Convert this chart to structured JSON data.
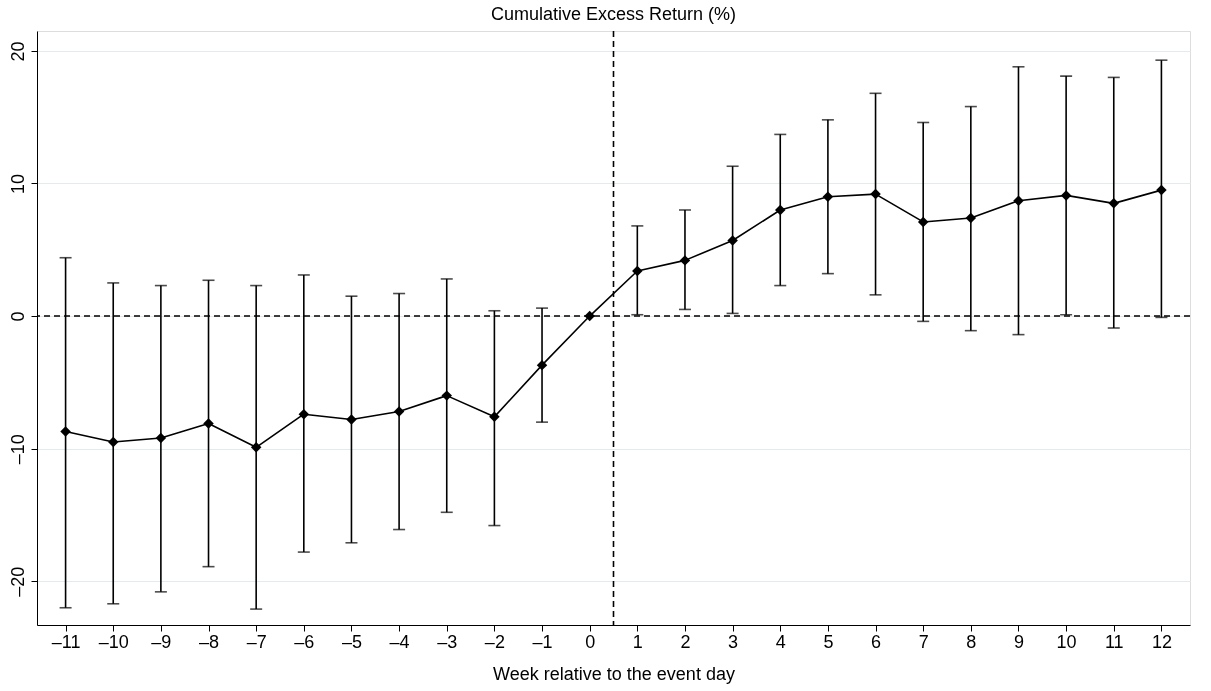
{
  "chart_data": {
    "type": "line",
    "title": "Cumulative Excess Return (%)",
    "xlabel": "Week relative to the event day",
    "x": [
      -11,
      -10,
      -9,
      -8,
      -7,
      -6,
      -5,
      -4,
      -3,
      -2,
      -1,
      0,
      1,
      2,
      3,
      4,
      5,
      6,
      7,
      8,
      9,
      10,
      11,
      12
    ],
    "series": [
      {
        "color": "#000000",
        "values": [
          -8.7,
          -9.5,
          -9.2,
          -8.1,
          -9.9,
          -7.4,
          -7.8,
          -7.2,
          -6.0,
          -7.6,
          -3.7,
          0,
          3.4,
          4.2,
          5.7,
          8.0,
          9.0,
          9.2,
          7.1,
          7.4,
          8.7,
          9.1,
          8.5,
          9.5
        ],
        "errors": [
          [
            -22.0,
            4.4
          ],
          [
            -21.7,
            2.5
          ],
          [
            -20.8,
            2.3
          ],
          [
            -18.9,
            2.7
          ],
          [
            -22.1,
            2.3
          ],
          [
            -17.8,
            3.1
          ],
          [
            -17.1,
            1.5
          ],
          [
            -16.1,
            1.7
          ],
          [
            -14.8,
            2.8
          ],
          [
            -15.8,
            0.4
          ],
          [
            -8.0,
            0.6
          ],
          null,
          [
            0.1,
            6.8
          ],
          [
            0.5,
            8.0
          ],
          [
            0.2,
            11.3
          ],
          [
            2.3,
            13.7
          ],
          [
            3.2,
            14.8
          ],
          [
            1.6,
            16.8
          ],
          [
            -0.4,
            14.6
          ],
          [
            -1.1,
            15.8
          ],
          [
            -1.4,
            18.8
          ],
          [
            0.1,
            18.1
          ],
          [
            -0.9,
            18.0
          ],
          [
            -0.1,
            19.3
          ]
        ]
      }
    ],
    "xlim": [
      -11.6,
      12.6
    ],
    "ylim": [
      -23.3,
      21.5
    ],
    "xticks": [
      {
        "value": -11,
        "label": "–11"
      },
      {
        "value": -10,
        "label": "–10"
      },
      {
        "value": -9,
        "label": "–9"
      },
      {
        "value": -8,
        "label": "–8"
      },
      {
        "value": -7,
        "label": "–7"
      },
      {
        "value": -6,
        "label": "–6"
      },
      {
        "value": -5,
        "label": "–5"
      },
      {
        "value": -4,
        "label": "–4"
      },
      {
        "value": -3,
        "label": "–3"
      },
      {
        "value": -2,
        "label": "–2"
      },
      {
        "value": -1,
        "label": "–1"
      },
      0,
      1,
      2,
      3,
      4,
      5,
      6,
      7,
      8,
      9,
      10,
      11,
      12
    ],
    "yticks": [
      {
        "value": -20,
        "label": "–20"
      },
      {
        "value": -10,
        "label": "–10"
      },
      0,
      10,
      20
    ],
    "ref_lines": [
      {
        "axis": "y",
        "value": 0,
        "line_style": "dashed"
      },
      {
        "axis": "x",
        "value": 0.5,
        "line_style": "dashed"
      }
    ],
    "grid": "y",
    "marker": "diamond",
    "line_style": "solid"
  }
}
